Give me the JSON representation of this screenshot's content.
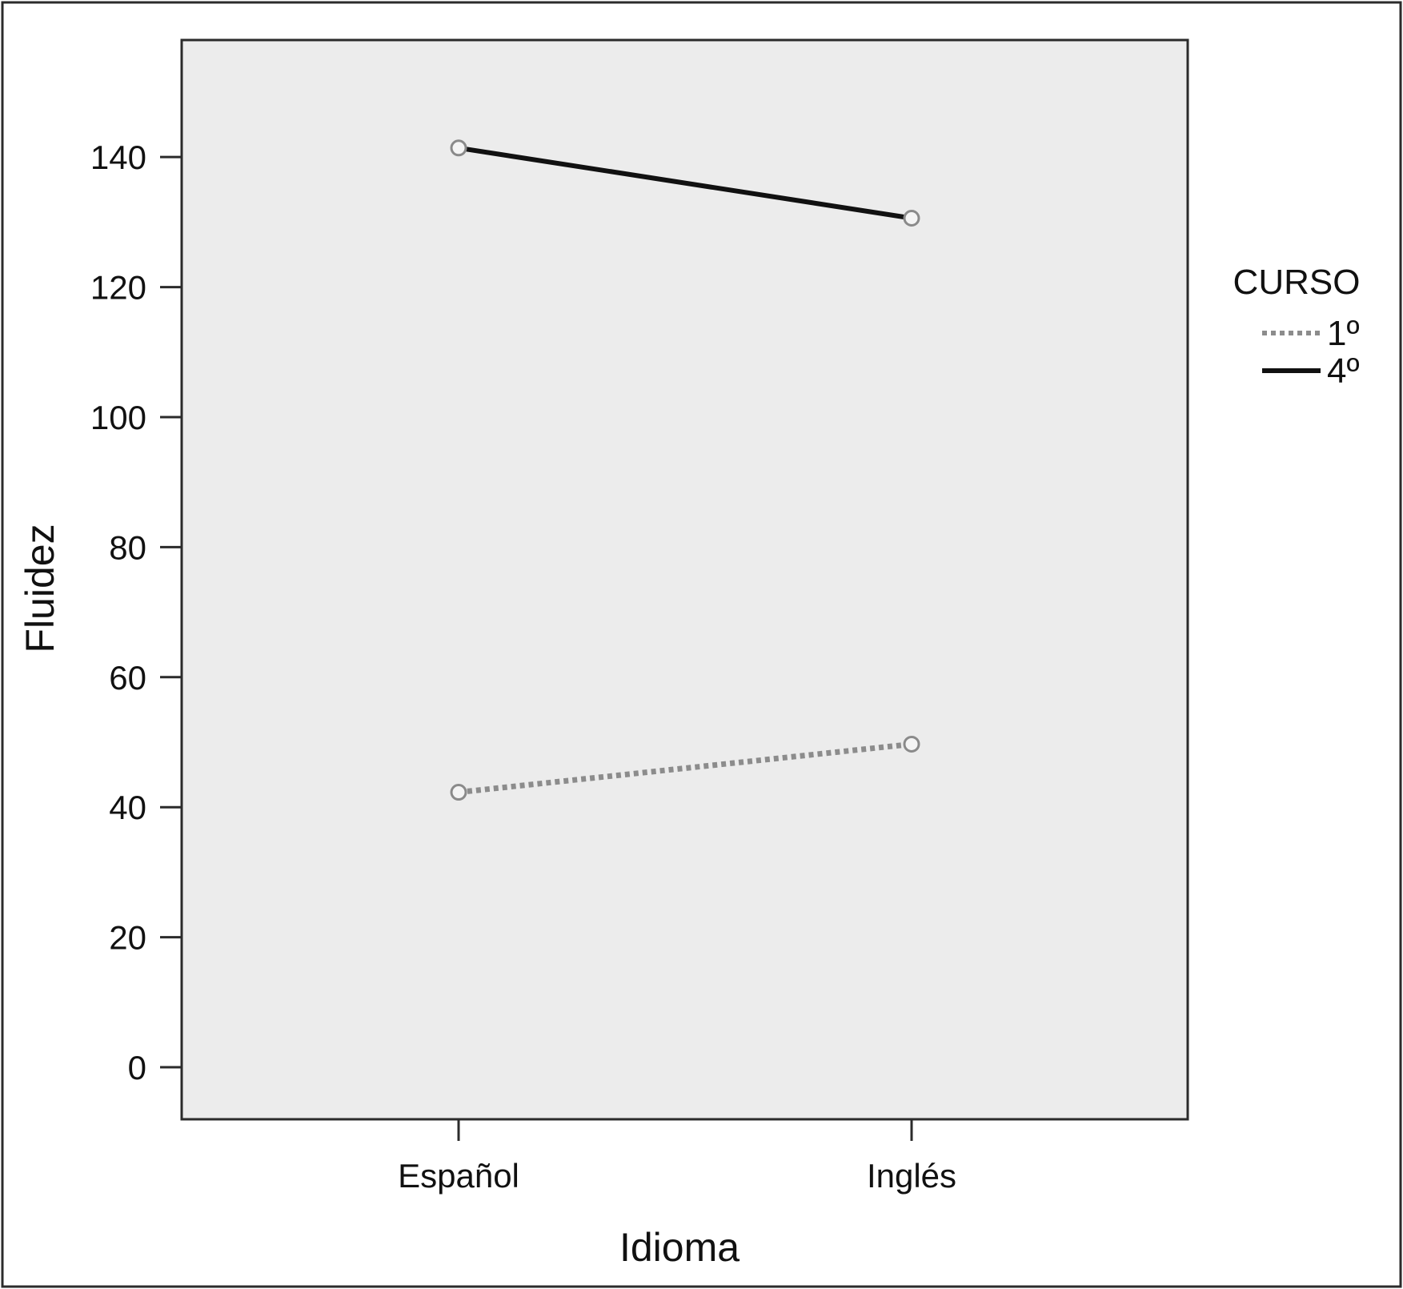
{
  "chart_data": {
    "type": "line",
    "title": "",
    "xlabel": "Idioma",
    "ylabel": "Fluidez",
    "categories": [
      "Español",
      "Inglés"
    ],
    "ylim": [
      -8,
      158
    ],
    "yticks": [
      0,
      20,
      40,
      60,
      80,
      100,
      120,
      140
    ],
    "grid": false,
    "legend": {
      "title": "CURSO",
      "position": "right"
    },
    "series": [
      {
        "name": "1º",
        "values": [
          42.3,
          49.7
        ],
        "line_style": "dotted",
        "color": "#8c8c8c"
      },
      {
        "name": "4º",
        "values": [
          141.4,
          130.6
        ],
        "line_style": "solid",
        "color": "#111111"
      }
    ],
    "colors": {
      "plot_background": "#ececec",
      "axis": "#2b2b2b",
      "marker": "#8a8a8a"
    }
  }
}
